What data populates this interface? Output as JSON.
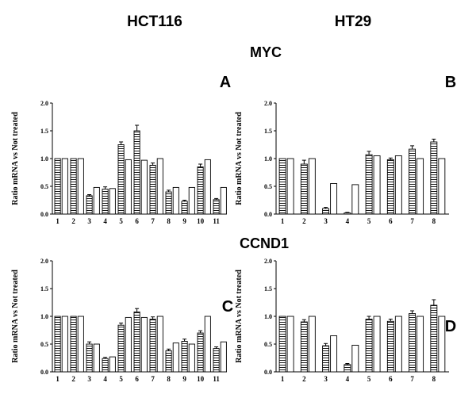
{
  "figure": {
    "col_left": "HCT116",
    "col_right": "HT29",
    "gene_top": "MYC",
    "gene_bottom": "CCND1"
  },
  "chart_data": [
    {
      "panel": "A",
      "type": "bar",
      "ylabel": "Ratio mRNA vs Not treated",
      "ylim": [
        0,
        2
      ],
      "yticks": [
        "0.0",
        "0.5",
        "1.0",
        "1.5",
        "2.0"
      ],
      "categories": [
        "1",
        "2",
        "3",
        "4",
        "5",
        "6",
        "7",
        "8",
        "9",
        "10",
        "11"
      ],
      "series": [
        {
          "pattern": "striped",
          "values": [
            1.0,
            1.0,
            0.33,
            0.45,
            1.25,
            1.5,
            0.88,
            0.4,
            0.23,
            0.85,
            0.26
          ],
          "errors": [
            0,
            0,
            0.02,
            0.04,
            0.05,
            0.1,
            0.04,
            0.03,
            0.02,
            0.05,
            0.02
          ]
        },
        {
          "pattern": "open",
          "values": [
            1.0,
            1.0,
            0.48,
            0.46,
            0.98,
            0.97,
            1.0,
            0.48,
            0.48,
            0.98,
            0.48
          ],
          "errors": [
            0,
            0,
            0,
            0,
            0,
            0,
            0,
            0,
            0,
            0,
            0
          ]
        }
      ]
    },
    {
      "panel": "B",
      "type": "bar",
      "ylabel": "Ratio mRNA vs Not treated",
      "ylim": [
        0,
        2
      ],
      "yticks": [
        "0.0",
        "0.5",
        "1.0",
        "1.5",
        "2.0"
      ],
      "categories": [
        "1",
        "2",
        "3",
        "4",
        "5",
        "6",
        "7",
        "8"
      ],
      "series": [
        {
          "pattern": "striped",
          "values": [
            1.0,
            0.9,
            0.1,
            0.02,
            1.07,
            0.98,
            1.17,
            1.3
          ],
          "errors": [
            0,
            0.07,
            0.02,
            0.01,
            0.06,
            0.03,
            0.06,
            0.05
          ]
        },
        {
          "pattern": "open",
          "values": [
            1.0,
            1.0,
            0.55,
            0.53,
            1.05,
            1.05,
            1.0,
            1.0
          ],
          "errors": [
            0,
            0,
            0,
            0,
            0,
            0,
            0,
            0
          ]
        }
      ]
    },
    {
      "panel": "C",
      "type": "bar",
      "ylabel": "Ratio mRNA vs Not treated",
      "ylim": [
        0,
        2
      ],
      "yticks": [
        "0.0",
        "0.5",
        "1.0",
        "1.5",
        "2.0"
      ],
      "categories": [
        "1",
        "2",
        "3",
        "4",
        "5",
        "6",
        "7",
        "8",
        "9",
        "10",
        "11"
      ],
      "series": [
        {
          "pattern": "striped",
          "values": [
            1.0,
            1.0,
            0.5,
            0.24,
            0.84,
            1.08,
            0.95,
            0.38,
            0.55,
            0.7,
            0.42
          ],
          "errors": [
            0,
            0,
            0.04,
            0.02,
            0.04,
            0.06,
            0.04,
            0.03,
            0.04,
            0.04,
            0.03
          ]
        },
        {
          "pattern": "open",
          "values": [
            1.0,
            1.0,
            0.5,
            0.27,
            0.98,
            0.98,
            1.0,
            0.52,
            0.5,
            1.0,
            0.54
          ],
          "errors": [
            0,
            0,
            0,
            0,
            0,
            0,
            0,
            0,
            0,
            0,
            0
          ]
        }
      ]
    },
    {
      "panel": "D",
      "type": "bar",
      "ylabel": "Ratio mRNA vs Not treated",
      "ylim": [
        0,
        2
      ],
      "yticks": [
        "0.0",
        "0.5",
        "1.0",
        "1.5",
        "2.0"
      ],
      "categories": [
        "1",
        "2",
        "3",
        "4",
        "5",
        "6",
        "7",
        "8"
      ],
      "series": [
        {
          "pattern": "striped",
          "values": [
            1.0,
            0.9,
            0.47,
            0.13,
            0.95,
            0.91,
            1.05,
            1.2
          ],
          "errors": [
            0,
            0.04,
            0.04,
            0.02,
            0.05,
            0.04,
            0.05,
            0.1
          ]
        },
        {
          "pattern": "open",
          "values": [
            1.0,
            1.0,
            0.65,
            0.48,
            1.0,
            1.0,
            1.0,
            1.0
          ],
          "errors": [
            0,
            0,
            0,
            0,
            0,
            0,
            0,
            0
          ]
        }
      ]
    }
  ]
}
